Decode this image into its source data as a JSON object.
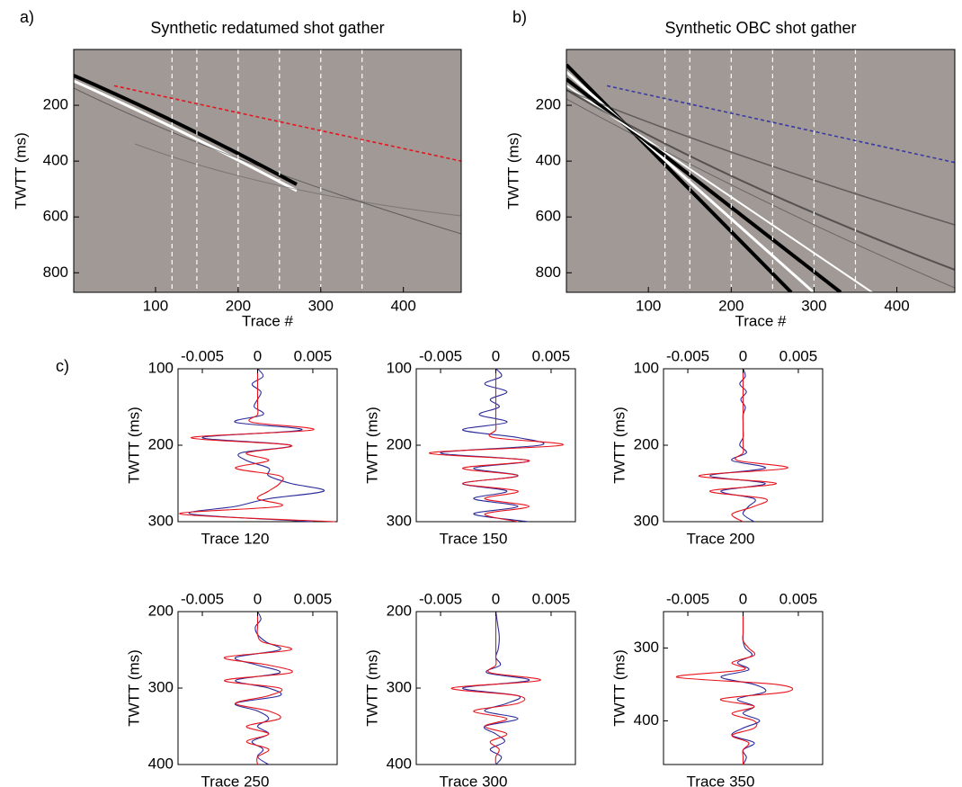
{
  "chart_data": [
    {
      "type": "image",
      "panel_label": "a)",
      "title": "Synthetic redatumed shot gather",
      "xlabel": "Trace #",
      "ylabel": "TWTT (ms)",
      "xlim": [
        1,
        470
      ],
      "ylim": [
        0,
        870
      ],
      "y_inverted": true,
      "xticks": [
        100,
        200,
        300,
        400
      ],
      "yticks": [
        200,
        400,
        600,
        800
      ],
      "background": "#a09996",
      "trace_lines": [
        120,
        150,
        200,
        250,
        300,
        350
      ],
      "trace_line_color": "#ffffff",
      "series": [
        {
          "color": "#e8141c",
          "x": [
            50,
            470
          ],
          "values": [
            130,
            400
          ]
        }
      ]
    },
    {
      "type": "image",
      "panel_label": "b)",
      "title": "Synthetic OBC shot gather",
      "xlabel": "Trace #",
      "ylabel": "TWTT (ms)",
      "xlim": [
        1,
        470
      ],
      "ylim": [
        0,
        870
      ],
      "y_inverted": true,
      "xticks": [
        100,
        200,
        300,
        400
      ],
      "yticks": [
        200,
        400,
        600,
        800
      ],
      "background": "#a09996",
      "trace_lines": [
        120,
        150,
        200,
        250,
        300,
        350
      ],
      "trace_line_color": "#ffffff",
      "series": [
        {
          "color": "#3a3aa0",
          "x": [
            50,
            470
          ],
          "values": [
            130,
            405
          ]
        }
      ]
    },
    {
      "type": "wiggle",
      "panel_label": "c)",
      "title": "Trace 120",
      "ylabel": "TWTT (ms)",
      "xlim": [
        -0.0072,
        0.0072
      ],
      "ylim": [
        100,
        300
      ],
      "y_inverted": true,
      "xticks": [
        -0.005,
        0,
        0.005
      ],
      "yticks": [
        100,
        200,
        300
      ],
      "y": [
        100,
        110,
        120,
        130,
        140,
        150,
        160,
        170,
        180,
        190,
        200,
        210,
        220,
        230,
        240,
        250,
        260,
        270,
        280,
        290,
        300
      ],
      "series": [
        {
          "color": "#2a2a9a",
          "values": [
            0,
            0.0005,
            -0.0005,
            0.0003,
            0,
            -0.0003,
            0.0005,
            -0.002,
            0.004,
            -0.005,
            0.003,
            -0.0015,
            -0.001,
            0.001,
            0.001,
            0.003,
            0.006,
            0.001,
            -0.002,
            -0.006,
            0.005
          ]
        },
        {
          "color": "#e8141c",
          "values": [
            0,
            0,
            0,
            0,
            0,
            0,
            0,
            -0.0005,
            0.005,
            -0.006,
            0.003,
            -0.001,
            0.001,
            -0.002,
            0.002,
            0.002,
            0.001,
            0,
            0.002,
            -0.007,
            0.007
          ]
        }
      ]
    },
    {
      "type": "wiggle",
      "title": "Trace 150",
      "ylabel": "TWTT (ms)",
      "xlim": [
        -0.0072,
        0.0072
      ],
      "ylim": [
        100,
        300
      ],
      "y_inverted": true,
      "xticks": [
        -0.005,
        0,
        0.005
      ],
      "yticks": [
        100,
        200,
        300
      ],
      "y": [
        100,
        110,
        120,
        130,
        140,
        150,
        160,
        170,
        180,
        190,
        200,
        210,
        220,
        230,
        240,
        250,
        260,
        270,
        280,
        290,
        300
      ],
      "series": [
        {
          "color": "#2a2a9a",
          "values": [
            0,
            0.0005,
            -0.001,
            0.001,
            -0.0005,
            0.0003,
            -0.0015,
            0.001,
            -0.003,
            0.002,
            0.004,
            -0.005,
            0.003,
            -0.002,
            0.002,
            -0.003,
            0.001,
            -0.002,
            0.002,
            -0.002,
            0.003
          ]
        },
        {
          "color": "#e8141c",
          "values": [
            0,
            0,
            0,
            0,
            0,
            0,
            0,
            0,
            0,
            -0.0002,
            0.006,
            -0.006,
            0.003,
            -0.003,
            0.002,
            -0.003,
            0.002,
            -0.001,
            0.003,
            -0.001,
            0.002
          ]
        }
      ]
    },
    {
      "type": "wiggle",
      "title": "Trace 200",
      "ylabel": "TWTT (ms)",
      "xlim": [
        -0.0072,
        0.0072
      ],
      "ylim": [
        100,
        300
      ],
      "y_inverted": true,
      "xticks": [
        -0.005,
        0,
        0.005
      ],
      "yticks": [
        100,
        200,
        300
      ],
      "y": [
        100,
        110,
        120,
        130,
        140,
        150,
        160,
        170,
        180,
        190,
        200,
        210,
        220,
        230,
        240,
        250,
        260,
        270,
        280,
        290,
        300
      ],
      "series": [
        {
          "color": "#2a2a9a",
          "values": [
            0,
            0.0002,
            -0.0003,
            0.0003,
            -0.0002,
            0.0002,
            0,
            0,
            0,
            0,
            -0.0003,
            0.0003,
            -0.001,
            0.002,
            -0.003,
            0.002,
            -0.002,
            0.001,
            0.0005,
            0,
            0.001
          ]
        },
        {
          "color": "#e8141c",
          "values": [
            0,
            0,
            0,
            0,
            0,
            0,
            0,
            0,
            0,
            0,
            0,
            0,
            -0.0005,
            0.004,
            -0.004,
            0.003,
            -0.003,
            0.002,
            0.001,
            -0.001,
            0
          ]
        }
      ]
    },
    {
      "type": "wiggle",
      "title": "Trace 250",
      "ylabel": "TWTT (ms)",
      "xlim": [
        -0.0072,
        0.0072
      ],
      "ylim": [
        200,
        400
      ],
      "y_inverted": true,
      "xticks": [
        -0.005,
        0,
        0.005
      ],
      "yticks": [
        200,
        300,
        400
      ],
      "y": [
        200,
        210,
        220,
        230,
        240,
        250,
        260,
        270,
        280,
        290,
        300,
        310,
        320,
        330,
        340,
        350,
        360,
        370,
        380,
        390,
        400
      ],
      "series": [
        {
          "color": "#2a2a9a",
          "values": [
            0,
            0.0003,
            -0.0002,
            0,
            0.0008,
            0.002,
            -0.002,
            0,
            0.002,
            -0.002,
            0.001,
            0.002,
            -0.002,
            0,
            0.001,
            0,
            0.001,
            -0.0005,
            0.0005,
            0,
            0.001
          ]
        },
        {
          "color": "#e8141c",
          "values": [
            0,
            0,
            0,
            0,
            0.0005,
            0.003,
            -0.003,
            0.001,
            0.003,
            -0.003,
            0.002,
            0.001,
            -0.002,
            0.001,
            0.002,
            -0.001,
            0.001,
            -0.001,
            0.001,
            0,
            0
          ]
        }
      ]
    },
    {
      "type": "wiggle",
      "title": "Trace 300",
      "ylabel": "TWTT (ms)",
      "xlim": [
        -0.0072,
        0.0072
      ],
      "ylim": [
        200,
        400
      ],
      "y_inverted": true,
      "xticks": [
        -0.005,
        0,
        0.005
      ],
      "yticks": [
        200,
        300,
        400
      ],
      "y": [
        200,
        210,
        220,
        230,
        240,
        250,
        260,
        270,
        280,
        290,
        300,
        310,
        320,
        330,
        340,
        350,
        360,
        370,
        380,
        390,
        400
      ],
      "series": [
        {
          "color": "#2a2a9a",
          "values": [
            0,
            0.0001,
            0.0002,
            0.0003,
            0.0003,
            0.0002,
            0,
            0.0004,
            -0.0008,
            0.003,
            -0.003,
            0.002,
            0.001,
            -0.001,
            0.002,
            -0.001,
            0,
            0.0008,
            -0.0005,
            0.0005,
            0
          ]
        },
        {
          "color": "#e8141c",
          "values": [
            0,
            0,
            0,
            0,
            0,
            0,
            0,
            0,
            -0.0005,
            0.004,
            -0.004,
            0.002,
            0.002,
            -0.002,
            0.001,
            -0.001,
            0.001,
            -0.0005,
            0.0003,
            0,
            0
          ]
        }
      ]
    },
    {
      "type": "wiggle",
      "title": "Trace 350",
      "ylabel": "TWTT (ms)",
      "xlim": [
        -0.0072,
        0.0072
      ],
      "ylim": [
        250,
        460
      ],
      "y_inverted": true,
      "xticks": [
        -0.005,
        0,
        0.005
      ],
      "yticks": [
        300,
        400
      ],
      "y": [
        250,
        260,
        270,
        280,
        290,
        300,
        310,
        320,
        330,
        340,
        350,
        360,
        370,
        380,
        390,
        400,
        410,
        420,
        430,
        440,
        450,
        460
      ],
      "series": [
        {
          "color": "#2a2a9a",
          "values": [
            0,
            0,
            0,
            0,
            0,
            0.0002,
            0.0008,
            -0.0005,
            0.0005,
            -0.002,
            0.001,
            0.002,
            -0.0005,
            0.001,
            0,
            0.0015,
            0,
            -0.001,
            0.001,
            0,
            0.0003,
            0
          ]
        },
        {
          "color": "#e8141c",
          "values": [
            0,
            0,
            0,
            0,
            0,
            0.0005,
            0.001,
            -0.001,
            0,
            -0.006,
            0.003,
            0.004,
            -0.002,
            0.001,
            -0.001,
            0.001,
            0.001,
            -0.001,
            0.0005,
            0,
            0,
            0
          ]
        }
      ]
    }
  ]
}
